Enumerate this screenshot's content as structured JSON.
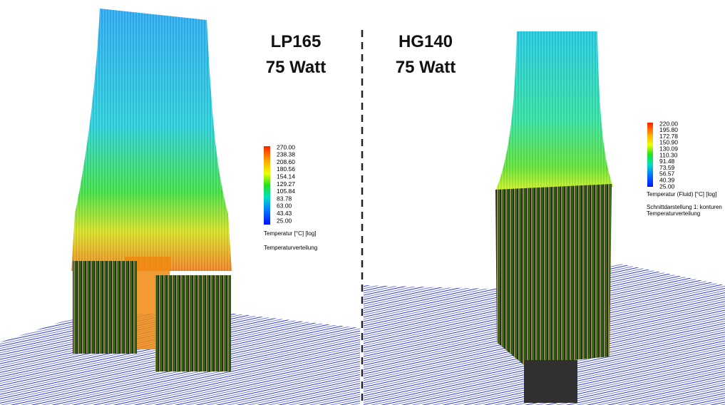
{
  "left": {
    "model": "LP165",
    "power": "75 Watt",
    "legend": {
      "labels": [
        "270.00",
        "238.38",
        "208.60",
        "180.56",
        "154.14",
        "129.27",
        "105.84",
        "83.78",
        "63.00",
        "43.43",
        "25.00"
      ],
      "caption": "Temperatur [°C] [log]",
      "note": "Temperaturverteilung"
    }
  },
  "right": {
    "model": "HG140",
    "power": "75 Watt",
    "legend": {
      "labels": [
        "220.00",
        "195.80",
        "172.78",
        "150.90",
        "130.09",
        "110.30",
        "91.48",
        "73.59",
        "56.57",
        "40.39",
        "25.00"
      ],
      "caption": "Temperatur (Fluid) [°C] [log]",
      "subcaption": "Schnittdarstellung 1: konturen",
      "note": "Temperaturverteilung"
    }
  }
}
